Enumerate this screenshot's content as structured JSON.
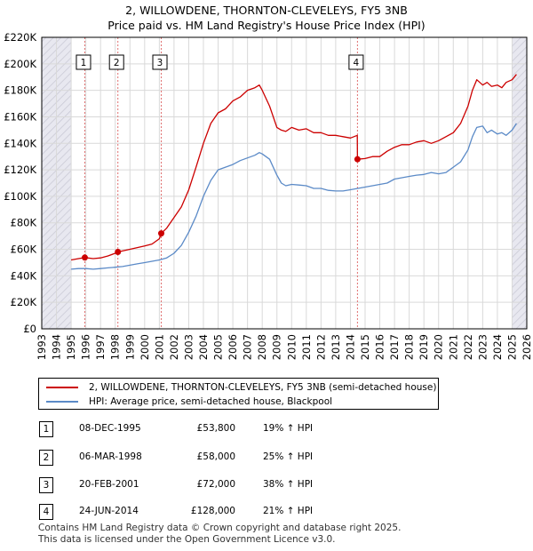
{
  "title_line1": "2, WILLOWDENE, THORNTON-CLEVELEYS, FY5 3NB",
  "title_line2": "Price paid vs. HM Land Registry's House Price Index (HPI)",
  "legend": {
    "property": "2, WILLOWDENE, THORNTON-CLEVELEYS, FY5 3NB (semi-detached house)",
    "hpi": "HPI: Average price, semi-detached house, Blackpool"
  },
  "colors": {
    "property": "#cc0000",
    "hpi": "#5b8ac7",
    "grid": "#d9d9d9",
    "shade": "#e8e8f0",
    "marker_line": "#e07070"
  },
  "transactions": [
    {
      "num": "1",
      "date": "08-DEC-1995",
      "price": "£53,800",
      "hpi": "19% ↑ HPI"
    },
    {
      "num": "2",
      "date": "06-MAR-1998",
      "price": "£58,000",
      "hpi": "25% ↑ HPI"
    },
    {
      "num": "3",
      "date": "20-FEB-2001",
      "price": "£72,000",
      "hpi": "38% ↑ HPI"
    },
    {
      "num": "4",
      "date": "24-JUN-2014",
      "price": "£128,000",
      "hpi": "21% ↑ HPI"
    }
  ],
  "footer": {
    "line1": "Contains HM Land Registry data © Crown copyright and database right 2025.",
    "line2": "This data is licensed under the Open Government Licence v3.0."
  },
  "chart_data": {
    "type": "line",
    "title": "Price paid vs. HM Land Registry's House Price Index (HPI)",
    "xlim": [
      1993,
      2026
    ],
    "ylim": [
      0,
      220000
    ],
    "x_ticks": [
      "1993",
      "1994",
      "1995",
      "1996",
      "1997",
      "1998",
      "1999",
      "2000",
      "2001",
      "2002",
      "2003",
      "2004",
      "2005",
      "2006",
      "2007",
      "2008",
      "2009",
      "2010",
      "2011",
      "2012",
      "2013",
      "2014",
      "2015",
      "2016",
      "2017",
      "2018",
      "2019",
      "2020",
      "2021",
      "2022",
      "2023",
      "2024",
      "2025",
      "2026"
    ],
    "y_ticks": [
      {
        "value": 0,
        "label": "£0"
      },
      {
        "value": 20000,
        "label": "£20K"
      },
      {
        "value": 40000,
        "label": "£40K"
      },
      {
        "value": 60000,
        "label": "£60K"
      },
      {
        "value": 80000,
        "label": "£80K"
      },
      {
        "value": 100000,
        "label": "£100K"
      },
      {
        "value": 120000,
        "label": "£120K"
      },
      {
        "value": 140000,
        "label": "£140K"
      },
      {
        "value": 160000,
        "label": "£160K"
      },
      {
        "value": 180000,
        "label": "£180K"
      },
      {
        "value": 200000,
        "label": "£200K"
      },
      {
        "value": 220000,
        "label": "£220K"
      }
    ],
    "shaded_ranges": [
      [
        1993,
        1995.0
      ],
      [
        2025.0,
        2026
      ]
    ],
    "sales": [
      {
        "label": "1",
        "x": 1995.93,
        "y": 53800
      },
      {
        "label": "2",
        "x": 1998.18,
        "y": 58000
      },
      {
        "label": "3",
        "x": 2001.13,
        "y": 72000
      },
      {
        "label": "4",
        "x": 2014.48,
        "y": 128000
      }
    ],
    "series": [
      {
        "name": "2, WILLOWDENE, THORNTON-CLEVELEYS, FY5 3NB (semi-detached house)",
        "x": [
          1995.0,
          1995.5,
          1995.93,
          1996.5,
          1997.0,
          1997.5,
          1998.0,
          1998.18,
          1999.0,
          2000.0,
          2000.5,
          2001.0,
          2001.13,
          2001.5,
          2002.0,
          2002.5,
          2003.0,
          2003.5,
          2004.0,
          2004.5,
          2005.0,
          2005.5,
          2006.0,
          2006.5,
          2007.0,
          2007.5,
          2007.8,
          2008.0,
          2008.5,
          2009.0,
          2009.3,
          2009.6,
          2010.0,
          2010.5,
          2011.0,
          2011.5,
          2012.0,
          2012.5,
          2013.0,
          2013.5,
          2014.0,
          2014.47,
          2014.48,
          2015.0,
          2015.5,
          2016.0,
          2016.5,
          2017.0,
          2017.5,
          2018.0,
          2018.5,
          2019.0,
          2019.5,
          2020.0,
          2020.5,
          2021.0,
          2021.5,
          2022.0,
          2022.3,
          2022.6,
          2023.0,
          2023.3,
          2023.6,
          2024.0,
          2024.3,
          2024.6,
          2025.0,
          2025.3
        ],
        "y": [
          52000,
          53000,
          53800,
          53000,
          53500,
          55000,
          57000,
          58000,
          60000,
          62500,
          64000,
          68000,
          72000,
          76000,
          84000,
          92000,
          105000,
          122000,
          140000,
          155000,
          163000,
          166000,
          172000,
          175000,
          180000,
          182000,
          184000,
          180000,
          168000,
          152000,
          150000,
          149000,
          152000,
          150000,
          151000,
          148000,
          148000,
          146000,
          146000,
          145000,
          144000,
          146000,
          128000,
          128500,
          130000,
          130000,
          134000,
          137000,
          139000,
          139000,
          141000,
          142000,
          140000,
          142000,
          145000,
          148000,
          155000,
          168000,
          180000,
          188000,
          184000,
          186000,
          183000,
          184000,
          182000,
          186000,
          188000,
          192000
        ]
      },
      {
        "name": "HPI: Average price, semi-detached house, Blackpool",
        "x": [
          1995.0,
          1995.5,
          1996.0,
          1996.5,
          1997.0,
          1997.5,
          1998.0,
          1998.5,
          1999.0,
          1999.5,
          2000.0,
          2000.5,
          2001.0,
          2001.5,
          2002.0,
          2002.5,
          2003.0,
          2003.5,
          2004.0,
          2004.5,
          2005.0,
          2005.5,
          2006.0,
          2006.5,
          2007.0,
          2007.5,
          2007.8,
          2008.0,
          2008.5,
          2009.0,
          2009.3,
          2009.6,
          2010.0,
          2010.5,
          2011.0,
          2011.5,
          2012.0,
          2012.5,
          2013.0,
          2013.5,
          2014.0,
          2014.5,
          2015.0,
          2015.5,
          2016.0,
          2016.5,
          2017.0,
          2017.5,
          2018.0,
          2018.5,
          2019.0,
          2019.5,
          2020.0,
          2020.5,
          2021.0,
          2021.5,
          2022.0,
          2022.3,
          2022.6,
          2023.0,
          2023.3,
          2023.6,
          2024.0,
          2024.3,
          2024.6,
          2025.0,
          2025.3
        ],
        "y": [
          45000,
          45500,
          45500,
          45000,
          45500,
          46000,
          46500,
          47000,
          48000,
          49000,
          50000,
          51000,
          52000,
          53500,
          57000,
          63000,
          73000,
          85000,
          100000,
          112000,
          120000,
          122000,
          124000,
          127000,
          129000,
          131000,
          133000,
          132000,
          128000,
          116000,
          110000,
          108000,
          109000,
          108500,
          108000,
          106000,
          106000,
          104500,
          104000,
          104000,
          105000,
          106000,
          107000,
          108000,
          109000,
          110000,
          113000,
          114000,
          115000,
          116000,
          116500,
          118000,
          117000,
          118000,
          122000,
          126000,
          135000,
          145000,
          152000,
          153000,
          148000,
          150000,
          147000,
          148000,
          146000,
          150000,
          155000
        ]
      }
    ]
  }
}
